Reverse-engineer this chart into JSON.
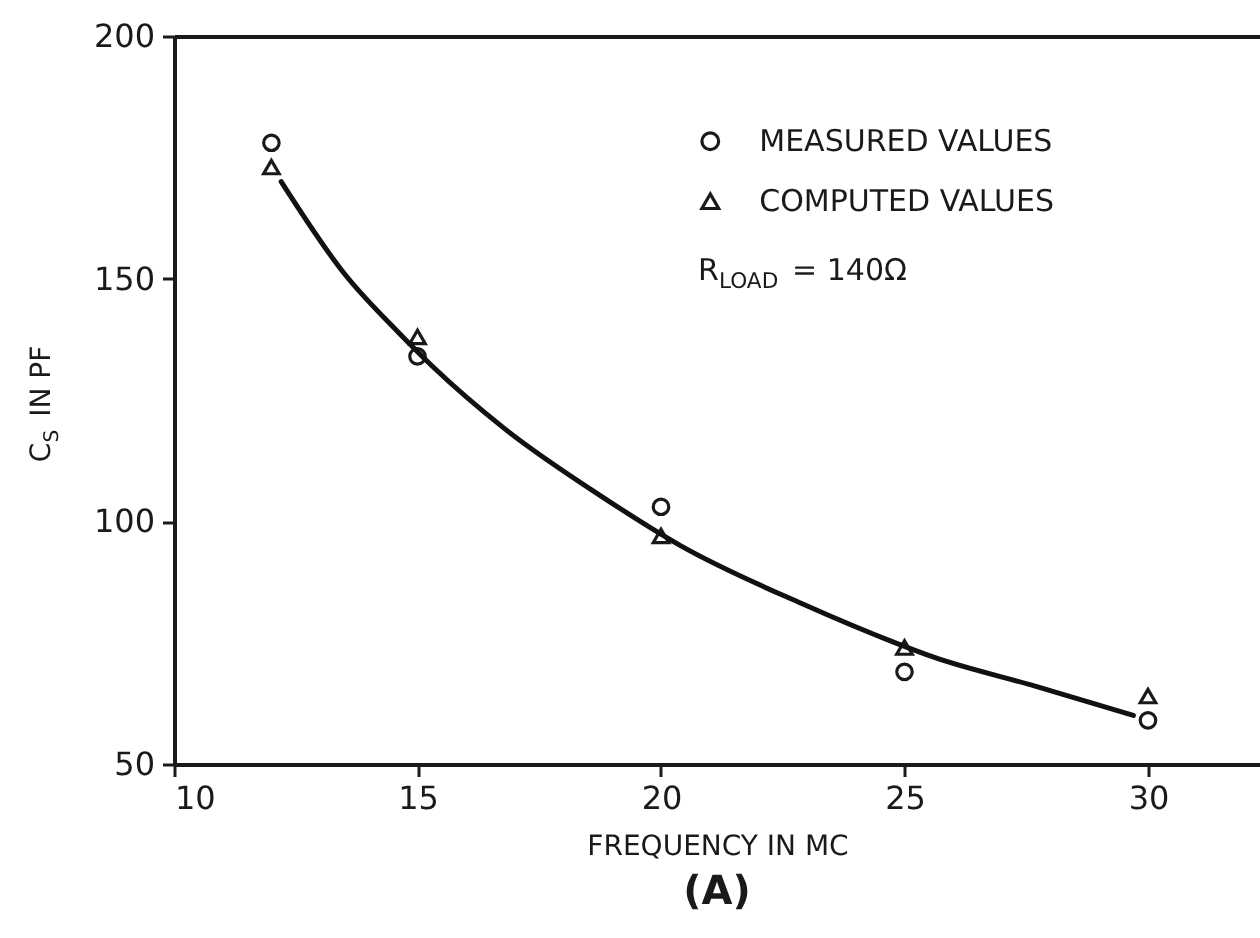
{
  "chart_data": {
    "type": "scatter",
    "title": "(A)",
    "xlabel": "FREQUENCY IN MC",
    "ylabel": "C$_{S}$ IN PF",
    "x": [
      12,
      15,
      20,
      25,
      30
    ],
    "series": [
      {
        "name": "MEASURED VALUES",
        "color": "#1a1a1a",
        "marker": "circle",
        "values": [
          178,
          134,
          103,
          69,
          59
        ]
      },
      {
        "name": "COMPUTED VALUES",
        "color": "#1a1a1a",
        "marker": "triangle",
        "values": [
          173,
          138,
          97,
          74,
          64
        ]
      },
      {
        "type": "line",
        "color": "#111111",
        "line_style": "solid",
        "x": [
          12.2,
          13.5,
          14.6,
          15.3,
          16.8,
          18.8,
          20.4,
          22.9,
          24.8,
          25.6,
          27.7,
          29.7
        ],
        "values": [
          170,
          151,
          139,
          132,
          119,
          105,
          95,
          83,
          75,
          72,
          66,
          60
        ]
      }
    ],
    "xlim": [
      10,
      32.3
    ],
    "ylim": [
      50,
      200
    ],
    "xticks": [
      10,
      15,
      20,
      25,
      30
    ],
    "yticks": [
      50,
      100,
      150,
      200
    ],
    "legend": "top right",
    "grid": false,
    "annotations": [
      "R$_{LOAD}$ = 140Ω"
    ]
  }
}
